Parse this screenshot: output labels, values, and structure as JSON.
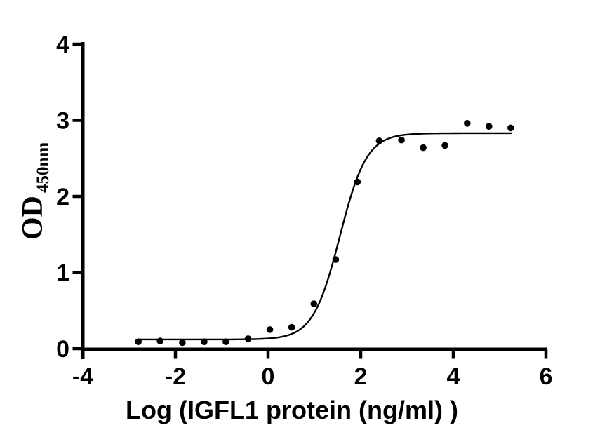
{
  "chart_data": {
    "type": "scatter",
    "title": "",
    "xlabel": "Log（IGFL1 protein（ng/ml） ）",
    "ylabel_main": "OD",
    "ylabel_sub": "450nm",
    "xlim": [
      -4,
      6
    ],
    "ylim": [
      0,
      4
    ],
    "xticks": [
      -4,
      -2,
      0,
      2,
      4,
      6
    ],
    "yticks": [
      0,
      1,
      2,
      3,
      4
    ],
    "grid": false,
    "legend": false,
    "colors": {
      "points": "#000000",
      "curve": "#000000",
      "axis": "#000000",
      "background": "#ffffff"
    },
    "points": {
      "x": [
        -2.8,
        -2.33,
        -1.85,
        -1.38,
        -0.91,
        -0.43,
        0.04,
        0.51,
        0.99,
        1.46,
        1.93,
        2.4,
        2.88,
        3.35,
        3.82,
        4.3,
        4.77,
        5.24
      ],
      "y": [
        0.09,
        0.1,
        0.08,
        0.09,
        0.09,
        0.13,
        0.25,
        0.28,
        0.59,
        1.17,
        2.19,
        2.73,
        2.74,
        2.64,
        2.67,
        2.96,
        2.92,
        2.9
      ]
    },
    "curve_fit": {
      "model": "4PL",
      "bottom": 0.12,
      "top": 2.83,
      "logEC50": 1.55,
      "hillslope": 1.5,
      "x_start": -2.82,
      "x_end": 5.27
    }
  }
}
